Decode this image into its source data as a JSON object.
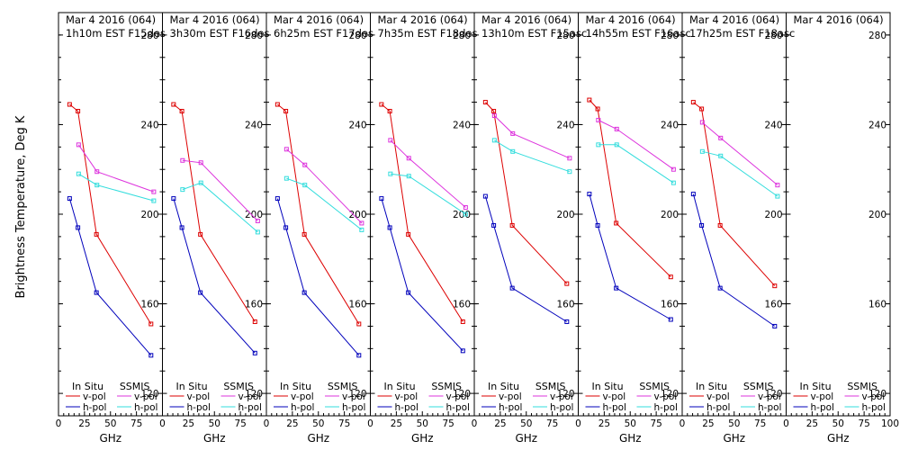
{
  "figure": {
    "ylabel": "Brightness Temperature, Deg K",
    "xlabel": "GHz",
    "x_ticks": [
      "0",
      "25",
      "50",
      "75",
      "100"
    ],
    "y_ticks": [
      "120",
      "160",
      "200",
      "240",
      "280"
    ],
    "legend": {
      "insitu_header": "In Situ",
      "ssmis_header": "SSMIS",
      "vpol": "v-pol",
      "hpol": "h-pol"
    },
    "colors": {
      "insitu_v": "#dd0000",
      "insitu_h": "#0000bb",
      "ssmis_v": "#dd33dd",
      "ssmis_h": "#33dddd"
    }
  },
  "chart_data": [
    {
      "type": "line",
      "title": "Mar 4 2016 (064)",
      "subtitle": "1h10m EST F15des",
      "xlim": [
        0,
        100
      ],
      "ylim": [
        110,
        290
      ],
      "series": [
        {
          "name": "In Situ v-pol",
          "x": [
            10.7,
            18.7,
            36.5,
            89
          ],
          "y": [
            249,
            246,
            191,
            151
          ]
        },
        {
          "name": "In Situ h-pol",
          "x": [
            10.7,
            18.7,
            36.5,
            89
          ],
          "y": [
            207,
            194,
            165,
            137
          ]
        },
        {
          "name": "SSMIS v-pol",
          "x": [
            19.35,
            37,
            91.65
          ],
          "y": [
            231,
            219,
            210
          ]
        },
        {
          "name": "SSMIS h-pol",
          "x": [
            19.35,
            37,
            91.65
          ],
          "y": [
            218,
            213,
            206
          ]
        }
      ]
    },
    {
      "type": "line",
      "title": "Mar 4 2016 (064)",
      "subtitle": "3h30m EST F16des",
      "xlim": [
        0,
        100
      ],
      "ylim": [
        110,
        290
      ],
      "series": [
        {
          "name": "In Situ v-pol",
          "x": [
            10.7,
            18.7,
            36.5,
            89
          ],
          "y": [
            249,
            246,
            191,
            152
          ]
        },
        {
          "name": "In Situ h-pol",
          "x": [
            10.7,
            18.7,
            36.5,
            89
          ],
          "y": [
            207,
            194,
            165,
            138
          ]
        },
        {
          "name": "SSMIS v-pol",
          "x": [
            19.35,
            37,
            91.65
          ],
          "y": [
            224,
            223,
            197
          ]
        },
        {
          "name": "SSMIS h-pol",
          "x": [
            19.35,
            37,
            91.65
          ],
          "y": [
            211,
            214,
            192
          ]
        }
      ]
    },
    {
      "type": "line",
      "title": "Mar 4 2016 (064)",
      "subtitle": "6h25m EST F17des",
      "xlim": [
        0,
        100
      ],
      "ylim": [
        110,
        290
      ],
      "series": [
        {
          "name": "In Situ v-pol",
          "x": [
            10.7,
            18.7,
            36.5,
            89
          ],
          "y": [
            249,
            246,
            191,
            151
          ]
        },
        {
          "name": "In Situ h-pol",
          "x": [
            10.7,
            18.7,
            36.5,
            89
          ],
          "y": [
            207,
            194,
            165,
            137
          ]
        },
        {
          "name": "SSMIS v-pol",
          "x": [
            19.35,
            37,
            91.65
          ],
          "y": [
            229,
            222,
            196
          ]
        },
        {
          "name": "SSMIS h-pol",
          "x": [
            19.35,
            37,
            91.65
          ],
          "y": [
            216,
            213,
            193
          ]
        }
      ]
    },
    {
      "type": "line",
      "title": "Mar 4 2016 (064)",
      "subtitle": "7h35m EST F18des",
      "xlim": [
        0,
        100
      ],
      "ylim": [
        110,
        290
      ],
      "series": [
        {
          "name": "In Situ v-pol",
          "x": [
            10.7,
            18.7,
            36.5,
            89
          ],
          "y": [
            249,
            246,
            191,
            152
          ]
        },
        {
          "name": "In Situ h-pol",
          "x": [
            10.7,
            18.7,
            36.5,
            89
          ],
          "y": [
            207,
            194,
            165,
            139
          ]
        },
        {
          "name": "SSMIS v-pol",
          "x": [
            19.35,
            37,
            91.65
          ],
          "y": [
            233,
            225,
            203
          ]
        },
        {
          "name": "SSMIS h-pol",
          "x": [
            19.35,
            37,
            91.65
          ],
          "y": [
            218,
            217,
            200
          ]
        }
      ]
    },
    {
      "type": "line",
      "title": "Mar 4 2016 (064)",
      "subtitle": "13h10m EST F15asc",
      "xlim": [
        0,
        100
      ],
      "ylim": [
        110,
        290
      ],
      "series": [
        {
          "name": "In Situ v-pol",
          "x": [
            10.7,
            18.7,
            36.5,
            89
          ],
          "y": [
            250,
            246,
            195,
            169
          ]
        },
        {
          "name": "In Situ h-pol",
          "x": [
            10.7,
            18.7,
            36.5,
            89
          ],
          "y": [
            208,
            195,
            167,
            152
          ]
        },
        {
          "name": "SSMIS v-pol",
          "x": [
            19.35,
            37,
            91.65
          ],
          "y": [
            244,
            236,
            225
          ]
        },
        {
          "name": "SSMIS h-pol",
          "x": [
            19.35,
            37,
            91.65
          ],
          "y": [
            233,
            228,
            219
          ]
        }
      ]
    },
    {
      "type": "line",
      "title": "Mar 4 2016 (064)",
      "subtitle": "14h55m EST F16asc",
      "xlim": [
        0,
        100
      ],
      "ylim": [
        110,
        290
      ],
      "series": [
        {
          "name": "In Situ v-pol",
          "x": [
            10.7,
            18.7,
            36.5,
            89
          ],
          "y": [
            251,
            247,
            196,
            172
          ]
        },
        {
          "name": "In Situ h-pol",
          "x": [
            10.7,
            18.7,
            36.5,
            89
          ],
          "y": [
            209,
            195,
            167,
            153
          ]
        },
        {
          "name": "SSMIS v-pol",
          "x": [
            19.35,
            37,
            91.65
          ],
          "y": [
            242,
            238,
            220
          ]
        },
        {
          "name": "SSMIS h-pol",
          "x": [
            19.35,
            37,
            91.65
          ],
          "y": [
            231,
            231,
            214
          ]
        }
      ]
    },
    {
      "type": "line",
      "title": "Mar 4 2016 (064)",
      "subtitle": "17h25m EST F18asc",
      "xlim": [
        0,
        100
      ],
      "ylim": [
        110,
        290
      ],
      "series": [
        {
          "name": "In Situ v-pol",
          "x": [
            10.7,
            18.7,
            36.5,
            89
          ],
          "y": [
            250,
            247,
            195,
            168
          ]
        },
        {
          "name": "In Situ h-pol",
          "x": [
            10.7,
            18.7,
            36.5,
            89
          ],
          "y": [
            209,
            195,
            167,
            150
          ]
        },
        {
          "name": "SSMIS v-pol",
          "x": [
            19.35,
            37,
            91.65
          ],
          "y": [
            241,
            234,
            213
          ]
        },
        {
          "name": "SSMIS h-pol",
          "x": [
            19.35,
            37,
            91.65
          ],
          "y": [
            228,
            226,
            208
          ]
        }
      ]
    },
    {
      "type": "line",
      "title": "Mar 4 2016 (064)",
      "subtitle": "",
      "xlim": [
        0,
        100
      ],
      "ylim": [
        110,
        290
      ],
      "series": []
    }
  ]
}
